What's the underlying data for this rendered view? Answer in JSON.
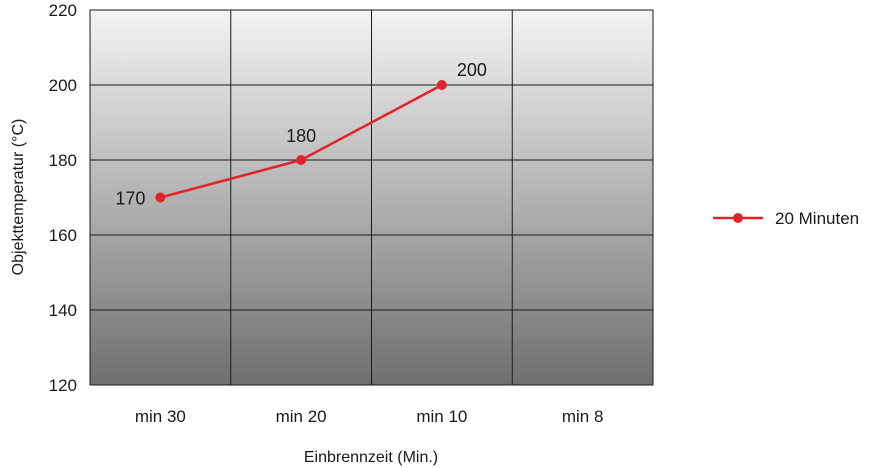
{
  "chart_data": {
    "type": "line",
    "title": "",
    "xlabel": "Einbrennzeit (Min.)",
    "ylabel": "Objekttemperatur (°C)",
    "categories": [
      "min 30",
      "min 20",
      "min 10",
      "min 8"
    ],
    "ylim": [
      120,
      220
    ],
    "yticks": [
      120,
      140,
      160,
      180,
      200,
      220
    ],
    "grid": true,
    "legend_position": "right",
    "series": [
      {
        "name": "20 Minuten",
        "color": "#e3232a",
        "values": [
          170,
          180,
          200,
          null
        ],
        "data_labels": [
          "170",
          "180",
          "200",
          ""
        ]
      }
    ],
    "background": "vertical gradient light gray to dark gray"
  }
}
